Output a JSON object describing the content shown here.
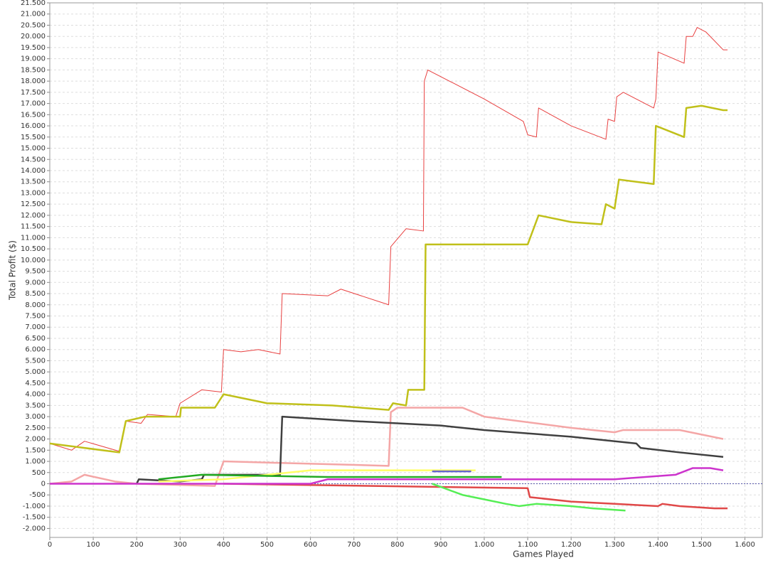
{
  "chart_data": {
    "type": "line",
    "x_label": "Games Played",
    "y_label": "Total Profit ($)",
    "xlim": [
      0,
      1640
    ],
    "ylim": [
      -2400,
      21500
    ],
    "grid": true,
    "zero_line": true,
    "xticks": [
      0,
      100,
      200,
      300,
      400,
      500,
      600,
      700,
      800,
      900,
      {
        "value": 1000,
        "label": "1.000"
      },
      {
        "value": 1100,
        "label": "1.100"
      },
      {
        "value": 1200,
        "label": "1.200"
      },
      {
        "value": 1300,
        "label": "1.300"
      },
      {
        "value": 1400,
        "label": "1.400"
      },
      {
        "value": 1500,
        "label": "1.500"
      },
      {
        "value": 1600,
        "label": "1.600"
      }
    ],
    "yticks": [
      {
        "value": -2000,
        "label": "-2.000"
      },
      {
        "value": -1500,
        "label": "-1.500"
      },
      {
        "value": -1000,
        "label": "-1.000"
      },
      -500,
      0,
      500,
      {
        "value": 1000,
        "label": "1.000"
      },
      {
        "value": 1500,
        "label": "1.500"
      },
      {
        "value": 2000,
        "label": "2.000"
      },
      {
        "value": 2500,
        "label": "2.500"
      },
      {
        "value": 3000,
        "label": "3.000"
      },
      {
        "value": 3500,
        "label": "3.500"
      },
      {
        "value": 4000,
        "label": "4.000"
      },
      {
        "value": 4500,
        "label": "4.500"
      },
      {
        "value": 5000,
        "label": "5.000"
      },
      {
        "value": 5500,
        "label": "5.500"
      },
      {
        "value": 6000,
        "label": "6.000"
      },
      {
        "value": 6500,
        "label": "6.500"
      },
      {
        "value": 7000,
        "label": "7.000"
      },
      {
        "value": 7500,
        "label": "7.500"
      },
      {
        "value": 8000,
        "label": "8.000"
      },
      {
        "value": 8500,
        "label": "8.500"
      },
      {
        "value": 9000,
        "label": "9.000"
      },
      {
        "value": 9500,
        "label": "9.500"
      },
      {
        "value": 10000,
        "label": "10.000"
      },
      {
        "value": 10500,
        "label": "10.500"
      },
      {
        "value": 11000,
        "label": "11.000"
      },
      {
        "value": 11500,
        "label": "11.500"
      },
      {
        "value": 12000,
        "label": "12.000"
      },
      {
        "value": 12500,
        "label": "12.500"
      },
      {
        "value": 13000,
        "label": "13.000"
      },
      {
        "value": 13500,
        "label": "13.500"
      },
      {
        "value": 14000,
        "label": "14.000"
      },
      {
        "value": 14500,
        "label": "14.500"
      },
      {
        "value": 15000,
        "label": "15.000"
      },
      {
        "value": 15500,
        "label": "15.500"
      },
      {
        "value": 16000,
        "label": "16.000"
      },
      {
        "value": 16500,
        "label": "16.500"
      },
      {
        "value": 17000,
        "label": "17.000"
      },
      {
        "value": 17500,
        "label": "17.500"
      },
      {
        "value": 18000,
        "label": "18.000"
      },
      {
        "value": 18500,
        "label": "18.500"
      },
      {
        "value": 19000,
        "label": "19.000"
      },
      {
        "value": 19500,
        "label": "19.500"
      },
      {
        "value": 20000,
        "label": "20.000"
      },
      {
        "value": 20500,
        "label": "20.500"
      },
      {
        "value": 21000,
        "label": "21.000"
      },
      {
        "value": 21500,
        "label": "21.500"
      }
    ],
    "series": [
      {
        "color": "#e84040",
        "width": 1,
        "x": [
          0,
          50,
          80,
          160,
          175,
          210,
          225,
          290,
          300,
          350,
          395,
          400,
          440,
          480,
          530,
          535,
          640,
          670,
          780,
          785,
          820,
          860,
          862,
          870,
          1000,
          1090,
          1100,
          1120,
          1125,
          1200,
          1280,
          1285,
          1300,
          1305,
          1320,
          1390,
          1395,
          1400,
          1460,
          1465,
          1480,
          1490,
          1510,
          1550,
          1560
        ],
        "values": [
          1800,
          1500,
          1900,
          1450,
          2800,
          2700,
          3100,
          3000,
          3600,
          4200,
          4100,
          6000,
          5900,
          6000,
          5800,
          8500,
          8400,
          8700,
          8000,
          10600,
          11400,
          11300,
          18000,
          18500,
          17200,
          16200,
          15600,
          15500,
          16800,
          16000,
          15400,
          16300,
          16200,
          17300,
          17500,
          16800,
          17200,
          19300,
          18800,
          20000,
          20000,
          20400,
          20200,
          19400,
          19400
        ]
      },
      {
        "color": "#c0c01a",
        "width": 2.5,
        "x": [
          0,
          80,
          160,
          175,
          220,
          300,
          302,
          380,
          400,
          500,
          650,
          780,
          790,
          820,
          825,
          862,
          865,
          1100,
          1125,
          1200,
          1270,
          1280,
          1300,
          1310,
          1390,
          1395,
          1460,
          1465,
          1500,
          1550,
          1560
        ],
        "values": [
          1800,
          1600,
          1400,
          2800,
          3000,
          3000,
          3400,
          3400,
          4000,
          3600,
          3500,
          3300,
          3600,
          3500,
          4200,
          4200,
          10700,
          10700,
          12000,
          11700,
          11600,
          12500,
          12300,
          13600,
          13400,
          16000,
          15500,
          16800,
          16900,
          16700,
          16700
        ]
      },
      {
        "color": "#f4a6a6",
        "width": 2.5,
        "x": [
          0,
          50,
          80,
          150,
          200,
          380,
          400,
          780,
          785,
          800,
          950,
          1000,
          1200,
          1300,
          1320,
          1450,
          1550
        ],
        "values": [
          0,
          100,
          400,
          100,
          0,
          -100,
          1000,
          800,
          3200,
          3400,
          3400,
          3000,
          2500,
          2300,
          2400,
          2400,
          2000
        ]
      },
      {
        "color": "#404040",
        "width": 2.5,
        "x": [
          200,
          205,
          300,
          350,
          355,
          530,
          535,
          700,
          900,
          1000,
          1200,
          1350,
          1360,
          1450,
          1550
        ],
        "values": [
          0,
          200,
          100,
          200,
          400,
          400,
          3000,
          2800,
          2600,
          2400,
          2100,
          1800,
          1600,
          1400,
          1200
        ]
      },
      {
        "color": "#e04848",
        "width": 2.5,
        "x": [
          400,
          1100,
          1105,
          1200,
          1300,
          1400,
          1410,
          1450,
          1530,
          1560
        ],
        "values": [
          0,
          -200,
          -600,
          -800,
          -900,
          -1000,
          -900,
          -1000,
          -1100,
          -1100
        ]
      },
      {
        "color": "#55ee55",
        "width": 2.5,
        "x": [
          880,
          950,
          1000,
          1050,
          1080,
          1120,
          1200,
          1250,
          1325
        ],
        "values": [
          0,
          -500,
          -700,
          -900,
          -1000,
          -900,
          -1000,
          -1100,
          -1200
        ]
      },
      {
        "color": "#cc33cc",
        "width": 2.5,
        "x": [
          0,
          600,
          640,
          1000,
          1300,
          1440,
          1480,
          1520,
          1550
        ],
        "values": [
          0,
          0,
          200,
          200,
          200,
          400,
          700,
          700,
          600
        ]
      },
      {
        "color": "#ffff66",
        "width": 2.5,
        "x": [
          250,
          400,
          550,
          600,
          980
        ],
        "values": [
          100,
          200,
          500,
          600,
          600
        ]
      },
      {
        "color": "#22aa22",
        "width": 2.5,
        "x": [
          250,
          350,
          640,
          1040
        ],
        "values": [
          200,
          400,
          300,
          300
        ]
      },
      {
        "color": "#6666cc",
        "width": 2.5,
        "x": [
          880,
          970
        ],
        "values": [
          550,
          550
        ]
      }
    ]
  }
}
